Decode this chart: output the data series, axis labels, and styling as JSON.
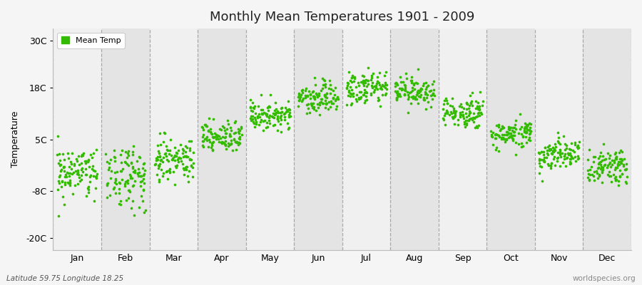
{
  "title": "Monthly Mean Temperatures 1901 - 2009",
  "ylabel": "Temperature",
  "xlabel": "",
  "footer_left": "Latitude 59.75 Longitude 18.25",
  "footer_right": "worldspecies.org",
  "legend_label": "Mean Temp",
  "dot_color": "#33bb00",
  "background_color": "#f5f5f5",
  "plot_bg_light": "#f0f0f0",
  "plot_bg_dark": "#e4e4e4",
  "yticks": [
    -20,
    -8,
    5,
    18,
    30
  ],
  "ytick_labels": [
    "-20C",
    "-8C",
    "5C",
    "18C",
    "30C"
  ],
  "ylim": [
    -23,
    33
  ],
  "months": [
    "Jan",
    "Feb",
    "Mar",
    "Apr",
    "May",
    "Jun",
    "Jul",
    "Aug",
    "Sep",
    "Oct",
    "Nov",
    "Dec"
  ],
  "mean_temps": [
    -3.0,
    -3.8,
    0.2,
    5.2,
    11.0,
    15.5,
    18.0,
    17.0,
    12.0,
    6.5,
    1.5,
    -2.0
  ],
  "std_temps": [
    3.2,
    3.5,
    2.5,
    2.0,
    1.8,
    2.0,
    2.2,
    1.8,
    1.8,
    1.8,
    2.0,
    2.5
  ],
  "n_years": 109,
  "seed": 42,
  "dot_size": 7
}
